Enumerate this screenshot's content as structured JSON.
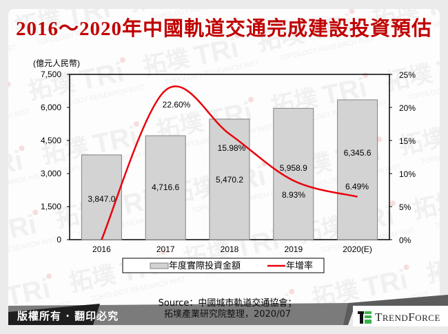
{
  "title": "2016～2020年中國軌道交通完成建設投資預估",
  "footer": {
    "copyright": "版權所有 · 翻印必究",
    "source_line1": "Source：中國城市軌道交通協會；",
    "source_line2": "拓墣產業研究院整理，2020/07",
    "brand": "TrendForce"
  },
  "watermark": {
    "text_cn": "拓墣",
    "text_logo": "TRi",
    "text_en": "TOPOLOGY RESEARCH INSTITUTE"
  },
  "colors": {
    "title": "#c00000",
    "bar_fill": "#d3d3d3",
    "bar_stroke": "#808080",
    "line": "#e8000b",
    "brand_green": "#3cb34a"
  },
  "chart_data": {
    "type": "bar+line",
    "title": "2016～2020年中國軌道交通完成建設投資預估",
    "ylabel": "(億元人民幣)",
    "y2label": "",
    "categories": [
      "2016",
      "2017",
      "2018",
      "2019",
      "2020(E)"
    ],
    "series": [
      {
        "name": "年度實際投資金額",
        "type": "bar",
        "axis": "left",
        "values": [
          3847.0,
          4716.6,
          5470.2,
          5958.9,
          6345.6
        ],
        "labels": [
          "3,847.0",
          "4,716.6",
          "5,470.2",
          "5,958.9",
          "6,345.6"
        ]
      },
      {
        "name": "年增率",
        "type": "line",
        "axis": "right",
        "values": [
          null,
          22.6,
          15.98,
          8.93,
          6.49
        ],
        "labels": [
          "",
          "22.60%",
          "15.98%",
          "8.93%",
          "6.49%"
        ]
      }
    ],
    "ylim": [
      0,
      7500
    ],
    "yticks": [
      "0",
      "1,500",
      "3,000",
      "4,500",
      "6,000",
      "7,500"
    ],
    "y2lim": [
      0,
      25
    ],
    "y2ticks": [
      "0%",
      "5%",
      "10%",
      "15%",
      "20%",
      "25%"
    ],
    "legend_position": "bottom",
    "grid": false
  }
}
